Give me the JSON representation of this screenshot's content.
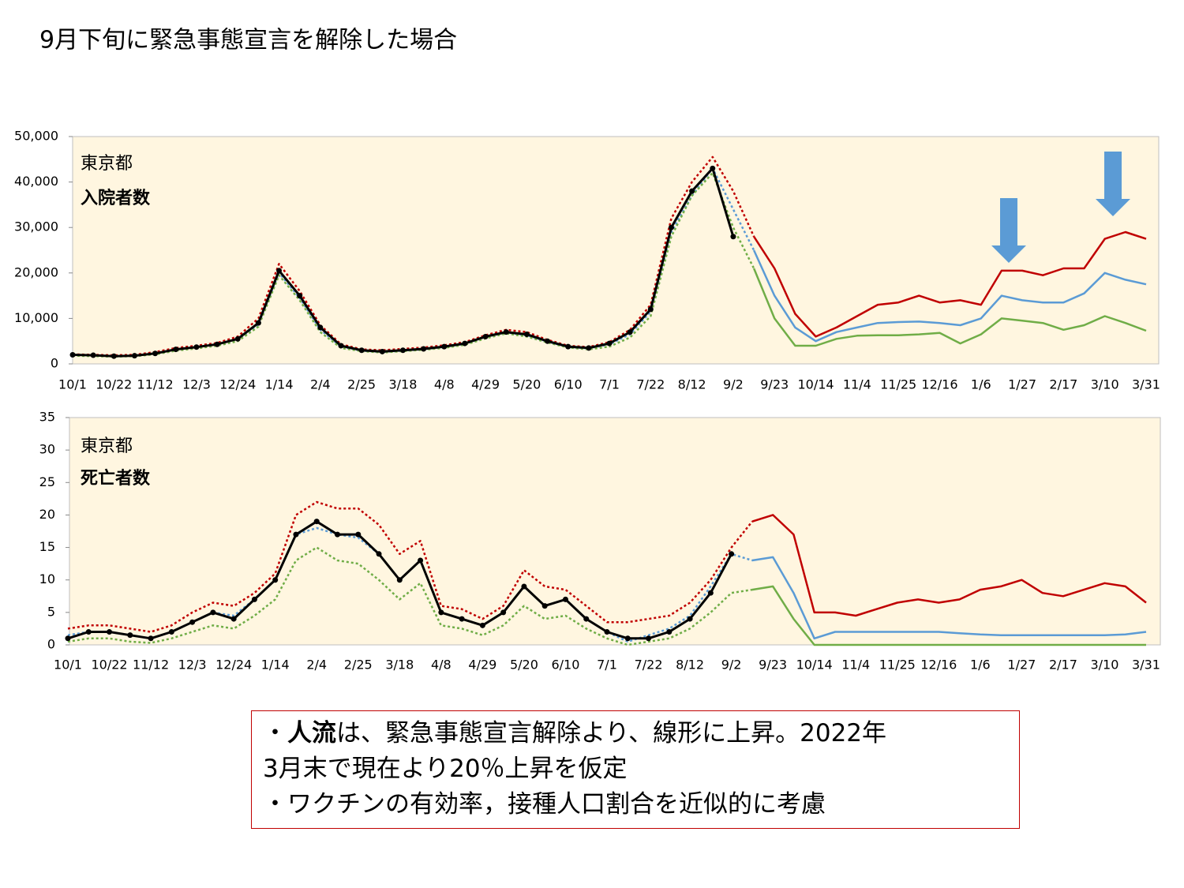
{
  "title": "9月下旬に緊急事態宣言を解除した場合",
  "chart_data": [
    {
      "type": "line",
      "annotation": "東京都",
      "subtitle": "入院者数",
      "categories": [
        "10/1",
        null,
        "10/22",
        null,
        "11/12",
        null,
        "12/3",
        null,
        "12/24",
        null,
        "1/14",
        null,
        "2/4",
        null,
        "2/25",
        null,
        "3/18",
        null,
        "4/8",
        null,
        "4/29",
        null,
        "5/20",
        null,
        "6/10",
        null,
        "7/1",
        null,
        "7/22",
        null,
        "8/12",
        null,
        "9/2",
        null,
        "9/23",
        null,
        "10/14",
        null,
        "11/4",
        null,
        "11/25",
        null,
        "12/16",
        null,
        "1/6",
        null,
        "1/27",
        null,
        "2/17",
        null,
        "3/10",
        null,
        "3/31"
      ],
      "ylim": [
        0,
        50000
      ],
      "yticks": [
        0,
        {
          "value": 10000,
          "label": "10,000"
        },
        {
          "value": 20000,
          "label": "20,000"
        },
        {
          "value": 30000,
          "label": "30,000"
        },
        {
          "value": 40000,
          "label": "40,000"
        },
        {
          "value": 50000,
          "label": "50,000"
        }
      ],
      "background": "#fff6e0",
      "series": [
        {
          "color": "#c00000",
          "dash": true,
          "values": [
            2100,
            2000,
            1900,
            2000,
            2600,
            3500,
            4000,
            4600,
            6000,
            10000,
            22000,
            16000,
            8500,
            4300,
            3200,
            3000,
            3300,
            3600,
            4100,
            4800,
            6300,
            7500,
            7000,
            5300,
            4000,
            3700,
            4800,
            7500,
            13000,
            32000,
            40000,
            45500,
            38000,
            28000,
            null,
            null,
            null,
            null,
            null,
            null,
            null,
            null,
            null,
            null,
            null,
            null,
            null,
            null,
            null,
            null,
            null,
            null,
            null
          ]
        },
        {
          "color": "#5b9bd5",
          "dash": true,
          "values": [
            1900,
            1800,
            1650,
            1750,
            2200,
            3100,
            3600,
            4200,
            5300,
            8700,
            20000,
            14500,
            7500,
            3800,
            2900,
            2600,
            2900,
            3200,
            3700,
            4400,
            5900,
            6900,
            6300,
            4900,
            3700,
            3400,
            4300,
            6500,
            11500,
            29000,
            37000,
            43000,
            34000,
            25000,
            null,
            null,
            null,
            null,
            null,
            null,
            null,
            null,
            null,
            null,
            null,
            null,
            null,
            null,
            null,
            null,
            null,
            null,
            null
          ]
        },
        {
          "color": "#70ad47",
          "dash": true,
          "values": [
            1800,
            1700,
            1600,
            1700,
            2100,
            2900,
            3400,
            4000,
            5000,
            8200,
            19500,
            14000,
            7000,
            3500,
            2800,
            2500,
            2800,
            3100,
            3500,
            4200,
            5600,
            6700,
            6000,
            4700,
            3600,
            3200,
            3800,
            5800,
            10500,
            28000,
            37000,
            42000,
            30000,
            21000,
            null,
            null,
            null,
            null,
            null,
            null,
            null,
            null,
            null,
            null,
            null,
            null,
            null,
            null,
            null,
            null,
            null,
            null,
            null
          ]
        },
        {
          "color": "#c00000",
          "dash": false,
          "values": [
            null,
            null,
            null,
            null,
            null,
            null,
            null,
            null,
            null,
            null,
            null,
            null,
            null,
            null,
            null,
            null,
            null,
            null,
            null,
            null,
            null,
            null,
            null,
            null,
            null,
            null,
            null,
            null,
            null,
            null,
            null,
            null,
            null,
            28000,
            21000,
            11000,
            6000,
            8000,
            10500,
            13000,
            13500,
            15000,
            13500,
            14000,
            13000,
            20500,
            20500,
            19500,
            21000,
            21000,
            27500,
            29000,
            27500
          ]
        },
        {
          "color": "#5b9bd5",
          "dash": false,
          "values": [
            null,
            null,
            null,
            null,
            null,
            null,
            null,
            null,
            null,
            null,
            null,
            null,
            null,
            null,
            null,
            null,
            null,
            null,
            null,
            null,
            null,
            null,
            null,
            null,
            null,
            null,
            null,
            null,
            null,
            null,
            null,
            null,
            null,
            25000,
            15000,
            8000,
            5000,
            7000,
            8000,
            9000,
            9200,
            9300,
            9000,
            8500,
            10000,
            15000,
            14000,
            13500,
            13500,
            15500,
            20000,
            18500,
            17500
          ]
        },
        {
          "color": "#70ad47",
          "dash": false,
          "values": [
            null,
            null,
            null,
            null,
            null,
            null,
            null,
            null,
            null,
            null,
            null,
            null,
            null,
            null,
            null,
            null,
            null,
            null,
            null,
            null,
            null,
            null,
            null,
            null,
            null,
            null,
            null,
            null,
            null,
            null,
            null,
            null,
            null,
            21000,
            10000,
            4000,
            4000,
            5500,
            6200,
            6300,
            6300,
            6500,
            6800,
            4500,
            6500,
            10000,
            9500,
            9000,
            7500,
            8500,
            10500,
            9000,
            7300
          ]
        },
        {
          "color": "#000000",
          "dash": false,
          "markers": true,
          "values": [
            2000,
            1900,
            1700,
            1800,
            2300,
            3200,
            3700,
            4300,
            5500,
            9000,
            20500,
            15000,
            8000,
            4000,
            3000,
            2700,
            3000,
            3300,
            3800,
            4500,
            6000,
            7000,
            6500,
            5000,
            3800,
            3500,
            4500,
            7000,
            12000,
            30000,
            38000,
            43000,
            28000,
            null,
            null,
            null,
            null,
            null,
            null,
            null,
            null,
            null,
            null,
            null,
            null,
            null,
            null,
            null,
            null,
            null,
            null,
            null,
            null
          ]
        }
      ]
    },
    {
      "type": "line",
      "annotation": "東京都",
      "subtitle": "死亡者数",
      "categories": [
        "10/1",
        null,
        "10/22",
        null,
        "11/12",
        null,
        "12/3",
        null,
        "12/24",
        null,
        "1/14",
        null,
        "2/4",
        null,
        "2/25",
        null,
        "3/18",
        null,
        "4/8",
        null,
        "4/29",
        null,
        "5/20",
        null,
        "6/10",
        null,
        "7/1",
        null,
        "7/22",
        null,
        "8/12",
        null,
        "9/2",
        null,
        "9/23",
        null,
        "10/14",
        null,
        "11/4",
        null,
        "11/25",
        null,
        "12/16",
        null,
        "1/6",
        null,
        "1/27",
        null,
        "2/17",
        null,
        "3/10",
        null,
        "3/31"
      ],
      "ylim": [
        0,
        35
      ],
      "yticks": [
        0,
        5,
        10,
        15,
        20,
        25,
        30,
        35
      ],
      "background": "#fff6e0",
      "series": [
        {
          "color": "#c00000",
          "dash": true,
          "values": [
            2.5,
            3,
            3,
            2.5,
            2,
            3,
            5,
            6.5,
            6,
            8,
            11,
            20,
            22,
            21,
            21,
            18.5,
            14,
            16,
            6,
            5.5,
            4,
            6,
            11.5,
            9,
            8.5,
            6,
            3.5,
            3.5,
            4,
            4.5,
            6.5,
            10,
            15,
            19,
            null,
            null,
            null,
            null,
            null,
            null,
            null,
            null,
            null,
            null,
            null,
            null,
            null,
            null,
            null,
            null,
            null,
            null,
            null
          ]
        },
        {
          "color": "#5b9bd5",
          "dash": true,
          "values": [
            1.5,
            2,
            2,
            1.5,
            1,
            2,
            3.5,
            5,
            4.5,
            7,
            10,
            17,
            18,
            17,
            16.5,
            14,
            10,
            13,
            5,
            4,
            3,
            5,
            9,
            6,
            7,
            4,
            2,
            0.5,
            1.5,
            2.5,
            4.5,
            9,
            14,
            13,
            null,
            null,
            null,
            null,
            null,
            null,
            null,
            null,
            null,
            null,
            null,
            null,
            null,
            null,
            null,
            null,
            null,
            null,
            null
          ]
        },
        {
          "color": "#70ad47",
          "dash": true,
          "values": [
            0.5,
            1,
            1,
            0.5,
            0.3,
            1,
            2,
            3,
            2.5,
            4.5,
            7,
            13,
            15,
            13,
            12.5,
            10,
            7,
            9.5,
            3,
            2.5,
            1.5,
            3,
            6,
            4,
            4.5,
            2.5,
            1,
            0,
            0.5,
            1,
            2.5,
            5,
            8,
            8.5,
            null,
            null,
            null,
            null,
            null,
            null,
            null,
            null,
            null,
            null,
            null,
            null,
            null,
            null,
            null,
            null,
            null,
            null,
            null
          ]
        },
        {
          "color": "#c00000",
          "dash": false,
          "values": [
            null,
            null,
            null,
            null,
            null,
            null,
            null,
            null,
            null,
            null,
            null,
            null,
            null,
            null,
            null,
            null,
            null,
            null,
            null,
            null,
            null,
            null,
            null,
            null,
            null,
            null,
            null,
            null,
            null,
            null,
            null,
            null,
            null,
            19,
            20,
            17,
            5,
            5,
            4.5,
            5.5,
            6.5,
            7,
            6.5,
            7,
            8.5,
            9,
            10,
            8,
            7.5,
            8.5,
            9.5,
            9,
            6.5
          ]
        },
        {
          "color": "#5b9bd5",
          "dash": false,
          "values": [
            null,
            null,
            null,
            null,
            null,
            null,
            null,
            null,
            null,
            null,
            null,
            null,
            null,
            null,
            null,
            null,
            null,
            null,
            null,
            null,
            null,
            null,
            null,
            null,
            null,
            null,
            null,
            null,
            null,
            null,
            null,
            null,
            null,
            13,
            13.5,
            8,
            1,
            2,
            2,
            2,
            2,
            2,
            2,
            1.8,
            1.6,
            1.5,
            1.5,
            1.5,
            1.5,
            1.5,
            1.5,
            1.6,
            2
          ]
        },
        {
          "color": "#70ad47",
          "dash": false,
          "values": [
            null,
            null,
            null,
            null,
            null,
            null,
            null,
            null,
            null,
            null,
            null,
            null,
            null,
            null,
            null,
            null,
            null,
            null,
            null,
            null,
            null,
            null,
            null,
            null,
            null,
            null,
            null,
            null,
            null,
            null,
            null,
            null,
            null,
            8.5,
            9,
            4,
            0,
            0,
            0,
            0,
            0,
            0,
            0,
            0,
            0,
            0,
            0,
            0,
            0,
            0,
            0,
            0,
            0
          ]
        },
        {
          "color": "#000000",
          "dash": false,
          "markers": true,
          "values": [
            1,
            2,
            2,
            1.5,
            1,
            2,
            3.5,
            5,
            4,
            7,
            10,
            17,
            19,
            17,
            17,
            14,
            10,
            13,
            5,
            4,
            3,
            5,
            9,
            6,
            7,
            4,
            2,
            1,
            1,
            2,
            4,
            8,
            14,
            null,
            null,
            null,
            null,
            null,
            null,
            null,
            null,
            null,
            null,
            null,
            null,
            null,
            null,
            null,
            null,
            null,
            null,
            null,
            null
          ]
        }
      ]
    }
  ],
  "note": {
    "line1": [
      "・",
      "人流",
      "は、緊急事態宣言解除より、線形に上昇。2022年"
    ],
    "line2": "3月末で現在より20％上昇を仮定",
    "line3": "・ワクチンの有効率，接種人口割合を近似的に考慮"
  }
}
